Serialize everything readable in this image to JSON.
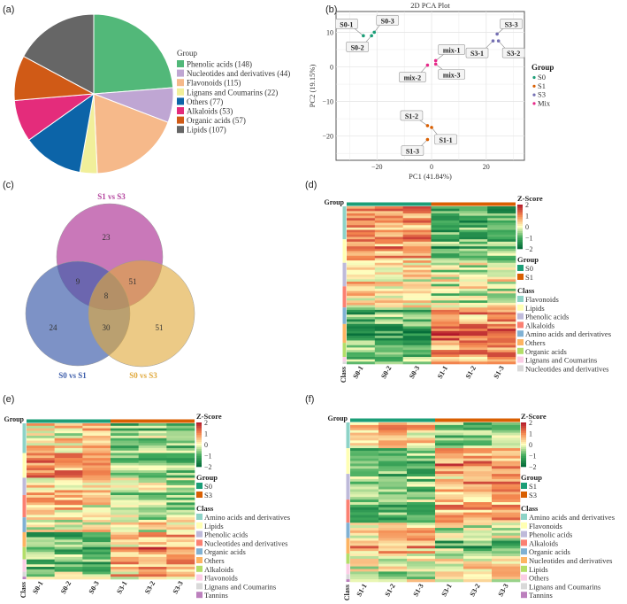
{
  "figure_labels": {
    "a": "(a)",
    "b": "(b)",
    "c": "(c)",
    "d": "(d)",
    "e": "(e)",
    "f": "(f)"
  },
  "chart_data": [
    {
      "panel": "a",
      "type": "pie",
      "legend_title": "Group",
      "legend_position": "right",
      "start": "12 o'clock, clockwise",
      "slices": [
        {
          "label": "Phenolic acids (148)",
          "value": 148,
          "color": "#52b879"
        },
        {
          "label": "Nucleotides and derivatives (44)",
          "value": 44,
          "color": "#bfa6d3"
        },
        {
          "label": "Flavonoids (115)",
          "value": 115,
          "color": "#f6b98a"
        },
        {
          "label": "Lignans and Coumarins (22)",
          "value": 22,
          "color": "#f1ef9a"
        },
        {
          "label": "Others (77)",
          "value": 77,
          "color": "#0c64a8"
        },
        {
          "label": "Alkaloids (53)",
          "value": 53,
          "color": "#e42c7b"
        },
        {
          "label": "Organic acids (57)",
          "value": 57,
          "color": "#d05a16"
        },
        {
          "label": "Lipids (107)",
          "value": 107,
          "color": "#666666"
        }
      ]
    },
    {
      "panel": "b",
      "type": "scatter",
      "title": "2D PCA Plot",
      "xlabel": "PC1 (41.84%)",
      "ylabel": "PC2 (19.15%)",
      "xlim": [
        -35,
        34
      ],
      "ylim": [
        -27,
        16
      ],
      "xticks": [
        -20,
        0,
        20
      ],
      "yticks": [
        10,
        0,
        -10,
        -20
      ],
      "grid": true,
      "legend_title": "Group",
      "legend_position": "right",
      "groups": [
        {
          "name": "S0",
          "color": "#1b9e77"
        },
        {
          "name": "S1",
          "color": "#d95f02"
        },
        {
          "name": "S3",
          "color": "#7570b3"
        },
        {
          "name": "Mix",
          "color": "#e7298a"
        }
      ],
      "points": [
        {
          "label": "S0-1",
          "group": "S0",
          "x": -25,
          "y": 9
        },
        {
          "label": "S0-2",
          "group": "S0",
          "x": -22,
          "y": 9
        },
        {
          "label": "S0-3",
          "group": "S0",
          "x": -21,
          "y": 10
        },
        {
          "label": "S3-1",
          "group": "S3",
          "x": 22.5,
          "y": 7.5
        },
        {
          "label": "S3-2",
          "group": "S3",
          "x": 24.5,
          "y": 7.5
        },
        {
          "label": "S3-3",
          "group": "S3",
          "x": 24,
          "y": 9.5
        },
        {
          "label": "mix-1",
          "group": "Mix",
          "x": 1.5,
          "y": 1.8
        },
        {
          "label": "mix-2",
          "group": "Mix",
          "x": -1.5,
          "y": 0.5
        },
        {
          "label": "mix-3",
          "group": "Mix",
          "x": 1.5,
          "y": 0.8
        },
        {
          "label": "S1-1",
          "group": "S1",
          "x": 0,
          "y": -17.5
        },
        {
          "label": "S1-2",
          "group": "S1",
          "x": -1.5,
          "y": -17
        },
        {
          "label": "S1-3",
          "group": "S1",
          "x": -1.5,
          "y": -21
        }
      ]
    },
    {
      "panel": "c",
      "type": "venn",
      "sets": [
        {
          "name": "S1 vs S3",
          "color": "#b4449e"
        },
        {
          "name": "S0 vs S1",
          "color": "#3f5fab"
        },
        {
          "name": "S0 vs S3",
          "color": "#e0a93c"
        }
      ],
      "regions": {
        "S1 vs S3 only": 23,
        "S0 vs S1 only": 24,
        "S0 vs S3 only": 51,
        "S1 vs S3 & S0 vs S1": 9,
        "S1 vs S3 & S0 vs S3": 51,
        "S0 vs S1 & S0 vs S3": 30,
        "all": 8
      }
    },
    {
      "panel": "d",
      "type": "heatmap",
      "samples": [
        "S0-1",
        "S0-2",
        "S0-3",
        "S1-1",
        "S1-2",
        "S1-3"
      ],
      "groups": [
        {
          "name": "S0",
          "color": "#1b9e77"
        },
        {
          "name": "S1",
          "color": "#d95f02"
        }
      ],
      "zscore_title": "Z-Score",
      "zscore_ticks": [
        "2",
        "1",
        "0",
        "−1",
        "−2"
      ],
      "zlim": [
        -2,
        2
      ],
      "group_title": "Group",
      "class_title": "Class",
      "classes": [
        {
          "name": "Flavonoids",
          "color": "#8dd3c7",
          "rows": 14,
          "group_means": [
            0.8,
            -1.0
          ]
        },
        {
          "name": "Lipids",
          "color": "#ffffb3",
          "rows": 10,
          "group_means": [
            0.8,
            -0.8
          ]
        },
        {
          "name": "Phenolic acids",
          "color": "#bebada",
          "rows": 10,
          "group_means": [
            0.2,
            -0.2
          ]
        },
        {
          "name": "Alkaloids",
          "color": "#fb8072",
          "rows": 9,
          "group_means": [
            0.3,
            -0.3
          ]
        },
        {
          "name": "Amino acids and derivatives",
          "color": "#80b1d3",
          "rows": 7,
          "group_means": [
            -0.8,
            0.6
          ]
        },
        {
          "name": "Others",
          "color": "#fdb462",
          "rows": 8,
          "group_means": [
            -1.0,
            1.2
          ]
        },
        {
          "name": "Organic acids",
          "color": "#b3de69",
          "rows": 6,
          "group_means": [
            -0.8,
            0.8
          ]
        },
        {
          "name": "Lignans and Coumarins",
          "color": "#fccde5",
          "rows": 2,
          "group_means": [
            -0.5,
            0.5
          ]
        },
        {
          "name": "Nucleotides and derivatives",
          "color": "#d9d9d9",
          "rows": 1,
          "group_means": [
            -0.5,
            0.5
          ]
        }
      ]
    },
    {
      "panel": "e",
      "type": "heatmap",
      "samples": [
        "S0-1",
        "S0-2",
        "S0-3",
        "S3-1",
        "S3-2",
        "S3-3"
      ],
      "groups": [
        {
          "name": "S0",
          "color": "#1b9e77"
        },
        {
          "name": "S3",
          "color": "#d95f02"
        }
      ],
      "zscore_title": "Z-Score",
      "zscore_ticks": [
        "2",
        "1",
        "0",
        "−1",
        "−2"
      ],
      "zlim": [
        -2,
        2
      ],
      "group_title": "Group",
      "class_title": "Class",
      "classes": [
        {
          "name": "Amino acids and derivatives",
          "color": "#8dd3c7",
          "rows": 12,
          "group_means": [
            0.3,
            -0.6
          ]
        },
        {
          "name": "Lipids",
          "color": "#ffffb3",
          "rows": 10,
          "group_means": [
            1.0,
            -0.9
          ]
        },
        {
          "name": "Phenolic acids",
          "color": "#bebada",
          "rows": 7,
          "group_means": [
            0.2,
            -0.2
          ]
        },
        {
          "name": "Nucleotides and derivatives",
          "color": "#fb8072",
          "rows": 9,
          "group_means": [
            0.4,
            -0.3
          ]
        },
        {
          "name": "Organic acids",
          "color": "#80b1d3",
          "rows": 6,
          "group_means": [
            0.2,
            0.0
          ]
        },
        {
          "name": "Others",
          "color": "#fdb462",
          "rows": 6,
          "group_means": [
            -0.6,
            0.5
          ]
        },
        {
          "name": "Alkaloids",
          "color": "#b3de69",
          "rows": 5,
          "group_means": [
            -0.9,
            0.9
          ]
        },
        {
          "name": "Flavonoids",
          "color": "#fccde5",
          "rows": 5,
          "group_means": [
            -0.8,
            0.8
          ]
        },
        {
          "name": "Lignans and Coumarins",
          "color": "#d9d9d9",
          "rows": 2,
          "group_means": [
            -0.5,
            0.6
          ]
        },
        {
          "name": "Tannins",
          "color": "#bc80bd",
          "rows": 1,
          "group_means": [
            -0.5,
            0.5
          ]
        }
      ]
    },
    {
      "panel": "f",
      "type": "heatmap",
      "samples": [
        "S1-1",
        "S1-2",
        "S1-3",
        "S3-1",
        "S3-2",
        "S3-3"
      ],
      "groups": [
        {
          "name": "S1",
          "color": "#1b9e77"
        },
        {
          "name": "S3",
          "color": "#d95f02"
        }
      ],
      "zscore_title": "Z-Score",
      "zscore_ticks": [
        "2",
        "1",
        "0",
        "−1",
        "−2"
      ],
      "zlim": [
        -2,
        2
      ],
      "group_title": "Group",
      "class_title": "Class",
      "classes": [
        {
          "name": "Amino acids and derivatives",
          "color": "#8dd3c7",
          "rows": 10,
          "group_means": [
            0.5,
            -0.7
          ]
        },
        {
          "name": "Flavonoids",
          "color": "#ffffb3",
          "rows": 10,
          "group_means": [
            -1.0,
            0.9
          ]
        },
        {
          "name": "Phenolic acids",
          "color": "#bebada",
          "rows": 10,
          "group_means": [
            -0.6,
            0.7
          ]
        },
        {
          "name": "Alkaloids",
          "color": "#fb8072",
          "rows": 9,
          "group_means": [
            -0.7,
            0.6
          ]
        },
        {
          "name": "Organic acids",
          "color": "#80b1d3",
          "rows": 6,
          "group_means": [
            0.3,
            0.0
          ]
        },
        {
          "name": "Nucleotides and derivatives",
          "color": "#fdb462",
          "rows": 6,
          "group_means": [
            0.8,
            -0.8
          ]
        },
        {
          "name": "Lipids",
          "color": "#b3de69",
          "rows": 4,
          "group_means": [
            0.3,
            -0.3
          ]
        },
        {
          "name": "Others",
          "color": "#fccde5",
          "rows": 4,
          "group_means": [
            -0.3,
            0.3
          ]
        },
        {
          "name": "Lignans and Coumarins",
          "color": "#d9d9d9",
          "rows": 2,
          "group_means": [
            -0.3,
            0.3
          ]
        },
        {
          "name": "Tannins",
          "color": "#bc80bd",
          "rows": 1,
          "group_means": [
            0.0,
            0.0
          ]
        }
      ]
    }
  ]
}
